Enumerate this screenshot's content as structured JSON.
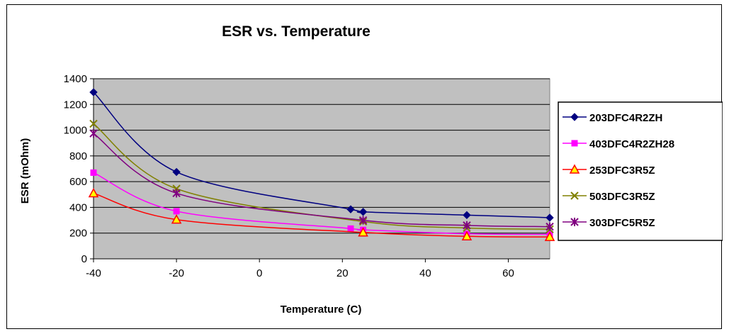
{
  "chart_data": {
    "type": "line",
    "title": "ESR vs. Temperature",
    "xlabel": "Temperature (C)",
    "ylabel": "ESR (mOhm)",
    "xlim": [
      -40,
      70
    ],
    "ylim": [
      0,
      1400
    ],
    "xticks": [
      -40,
      -20,
      0,
      20,
      40,
      60
    ],
    "yticks": [
      0,
      200,
      400,
      600,
      800,
      1000,
      1200,
      1400
    ],
    "grid": "horizontal",
    "plot_background": "#c0c0c0",
    "legend_position": "right",
    "series": [
      {
        "name": "203DFC4R2ZH",
        "color": "#000080",
        "marker": "diamond",
        "points": [
          [
            -40,
            1295
          ],
          [
            -20,
            675
          ],
          [
            22,
            385
          ],
          [
            25,
            365
          ],
          [
            50,
            340
          ],
          [
            70,
            320
          ]
        ]
      },
      {
        "name": "403DFC4R2ZH28",
        "color": "#ff00ff",
        "marker": "square",
        "points": [
          [
            -40,
            670
          ],
          [
            -20,
            370
          ],
          [
            22,
            235
          ],
          [
            25,
            225
          ],
          [
            50,
            195
          ],
          [
            70,
            190
          ]
        ]
      },
      {
        "name": "253DFC3R5Z",
        "color": "#ff0000",
        "marker": "triangle",
        "marker_fill": "#ffff00",
        "points": [
          [
            -40,
            510
          ],
          [
            -20,
            305
          ],
          [
            25,
            205
          ],
          [
            50,
            175
          ],
          [
            70,
            170
          ]
        ]
      },
      {
        "name": "503DFC3R5Z",
        "color": "#808000",
        "marker": "x",
        "points": [
          [
            -40,
            1050
          ],
          [
            -20,
            545
          ],
          [
            25,
            290
          ],
          [
            50,
            240
          ],
          [
            70,
            230
          ]
        ]
      },
      {
        "name": "303DFC5R5Z",
        "color": "#800080",
        "marker": "star",
        "points": [
          [
            -40,
            975
          ],
          [
            -20,
            510
          ],
          [
            25,
            300
          ],
          [
            50,
            260
          ],
          [
            70,
            250
          ]
        ]
      }
    ]
  }
}
